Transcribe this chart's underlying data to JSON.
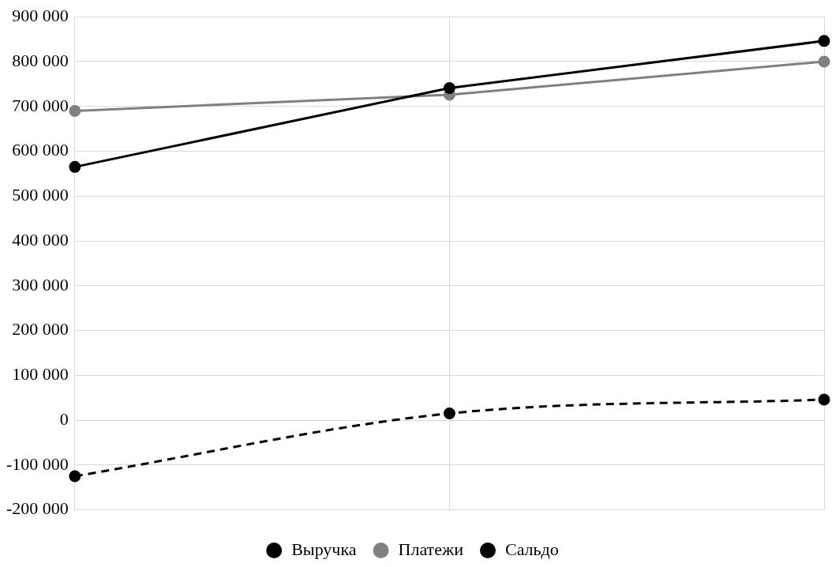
{
  "chart_data": {
    "type": "line",
    "categories": [
      null,
      null,
      null
    ],
    "series": [
      {
        "name": "Выручка",
        "color": "#000000",
        "values": [
          565000,
          741000,
          846000
        ],
        "line_style": "solid"
      },
      {
        "name": "Платежи",
        "color": "#808080",
        "values": [
          690000,
          726000,
          800000
        ],
        "line_style": "solid"
      },
      {
        "name": "Сальдо",
        "color": "#000000",
        "values": [
          -125000,
          15000,
          46000
        ],
        "line_style": "dashed"
      }
    ],
    "ylim": [
      -200000,
      900000
    ],
    "yticks": [
      {
        "value": -200000,
        "label": "-200 000"
      },
      {
        "value": -100000,
        "label": "-100 000"
      },
      {
        "value": 0,
        "label": "0"
      },
      {
        "value": 100000,
        "label": "100 000"
      },
      {
        "value": 200000,
        "label": "200 000"
      },
      {
        "value": 300000,
        "label": "300 000"
      },
      {
        "value": 400000,
        "label": "400 000"
      },
      {
        "value": 500000,
        "label": "500 000"
      },
      {
        "value": 600000,
        "label": "600 000"
      },
      {
        "value": 700000,
        "label": "700 000"
      },
      {
        "value": 800000,
        "label": "800 000"
      },
      {
        "value": 900000,
        "label": "900 000"
      }
    ],
    "grid": true,
    "legend": "bottom",
    "marker": "circle"
  }
}
